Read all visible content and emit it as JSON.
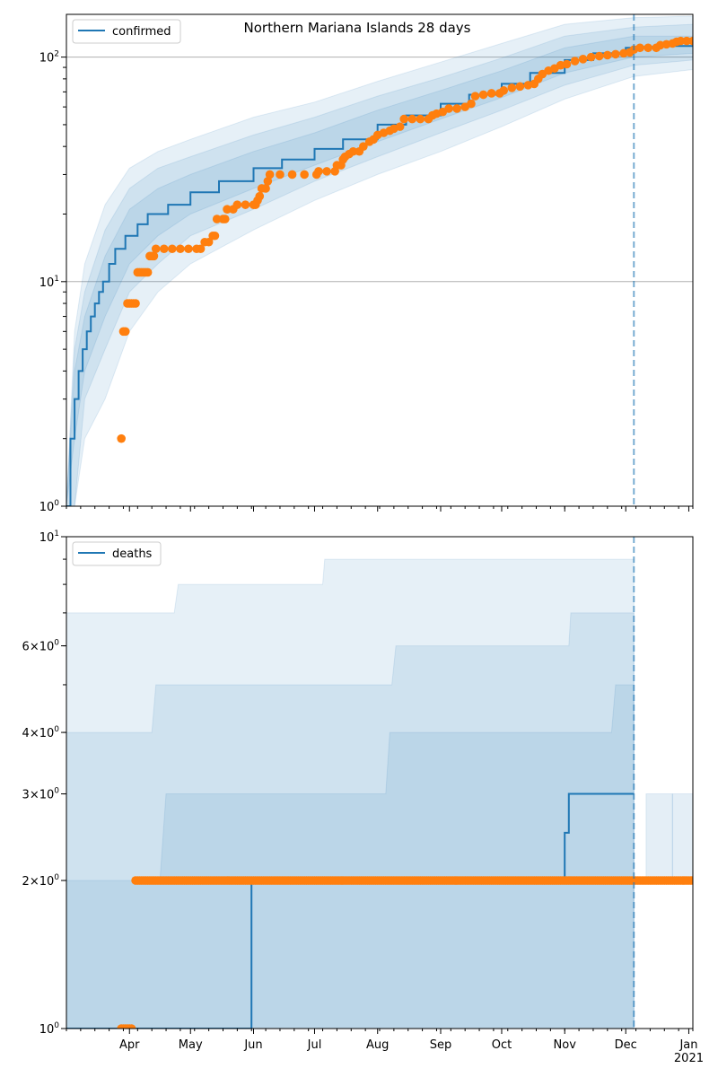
{
  "colors": {
    "model_line": "#1f77b4",
    "band": "#1f77b4",
    "observed": "#ff7f0e",
    "grid": "#b0b0b0",
    "forecast_marker": "#1f77b4"
  },
  "x_axis": {
    "domain": [
      "2020-03-01",
      "2021-01-03"
    ],
    "tick_labels": [
      {
        "date": "2020-04-01",
        "label": "Apr"
      },
      {
        "date": "2020-05-01",
        "label": "May"
      },
      {
        "date": "2020-06-01",
        "label": "Jun"
      },
      {
        "date": "2020-07-01",
        "label": "Jul"
      },
      {
        "date": "2020-08-01",
        "label": "Aug"
      },
      {
        "date": "2020-09-01",
        "label": "Sep"
      },
      {
        "date": "2020-10-01",
        "label": "Oct"
      },
      {
        "date": "2020-11-01",
        "label": "Nov"
      },
      {
        "date": "2020-12-01",
        "label": "Dec"
      },
      {
        "date": "2021-01-01",
        "label": "Jan"
      }
    ],
    "year_label": "2021"
  },
  "chart_data": [
    {
      "type": "line",
      "title": "Northern Mariana Islands 28 days",
      "yscale": "log",
      "ylim": [
        1,
        155
      ],
      "y_ticks": [
        {
          "value": 1,
          "base": "10",
          "exp": "0"
        },
        {
          "value": 10,
          "base": "10",
          "exp": "1"
        },
        {
          "value": 100,
          "base": "10",
          "exp": "2"
        }
      ],
      "grid": "major y lines",
      "legend": {
        "placement": "upper-left",
        "label": "confirmed"
      },
      "forecast_date": "2020-12-05",
      "model_series": [
        [
          "2020-03-01",
          1
        ],
        [
          "2020-03-03",
          2
        ],
        [
          "2020-03-05",
          3
        ],
        [
          "2020-03-07",
          4
        ],
        [
          "2020-03-09",
          5
        ],
        [
          "2020-03-11",
          6
        ],
        [
          "2020-03-13",
          7
        ],
        [
          "2020-03-15",
          8
        ],
        [
          "2020-03-17",
          9
        ],
        [
          "2020-03-19",
          10
        ],
        [
          "2020-03-22",
          12
        ],
        [
          "2020-03-25",
          14
        ],
        [
          "2020-03-30",
          16
        ],
        [
          "2020-04-05",
          18
        ],
        [
          "2020-04-10",
          20
        ],
        [
          "2020-04-20",
          22
        ],
        [
          "2020-05-01",
          25
        ],
        [
          "2020-05-15",
          28
        ],
        [
          "2020-06-01",
          32
        ],
        [
          "2020-06-15",
          35
        ],
        [
          "2020-07-01",
          39
        ],
        [
          "2020-07-15",
          43
        ],
        [
          "2020-08-01",
          50
        ],
        [
          "2020-08-15",
          55
        ],
        [
          "2020-09-01",
          62
        ],
        [
          "2020-09-15",
          68
        ],
        [
          "2020-10-01",
          76
        ],
        [
          "2020-10-15",
          85
        ],
        [
          "2020-11-01",
          97
        ],
        [
          "2020-11-15",
          104
        ],
        [
          "2020-12-01",
          110
        ],
        [
          "2020-12-05",
          111
        ],
        [
          "2020-12-15",
          112
        ],
        [
          "2021-01-03",
          113
        ]
      ],
      "band_inner": [
        [
          "2020-03-01",
          1,
          1
        ],
        [
          "2020-03-05",
          2,
          4
        ],
        [
          "2020-03-10",
          4,
          7
        ],
        [
          "2020-03-20",
          7,
          13
        ],
        [
          "2020-04-01",
          12,
          21
        ],
        [
          "2020-04-15",
          16,
          26
        ],
        [
          "2020-05-01",
          20,
          30
        ],
        [
          "2020-06-01",
          26,
          38
        ],
        [
          "2020-07-01",
          33,
          46
        ],
        [
          "2020-08-01",
          42,
          58
        ],
        [
          "2020-09-01",
          53,
          71
        ],
        [
          "2020-10-01",
          66,
          87
        ],
        [
          "2020-11-01",
          85,
          110
        ],
        [
          "2020-12-05",
          100,
          124
        ],
        [
          "2021-01-03",
          104,
          124
        ]
      ],
      "band_mid": [
        [
          "2020-03-01",
          1,
          1
        ],
        [
          "2020-03-05",
          1,
          5
        ],
        [
          "2020-03-10",
          3,
          9
        ],
        [
          "2020-03-20",
          5,
          17
        ],
        [
          "2020-04-01",
          9,
          26
        ],
        [
          "2020-04-15",
          12,
          32
        ],
        [
          "2020-05-01",
          16,
          36
        ],
        [
          "2020-06-01",
          21,
          45
        ],
        [
          "2020-07-01",
          28,
          54
        ],
        [
          "2020-08-01",
          36,
          67
        ],
        [
          "2020-09-01",
          46,
          81
        ],
        [
          "2020-10-01",
          58,
          99
        ],
        [
          "2020-11-01",
          75,
          124
        ],
        [
          "2020-12-05",
          92,
          136
        ],
        [
          "2021-01-03",
          97,
          140
        ]
      ],
      "band_outer": [
        [
          "2020-03-01",
          1,
          1
        ],
        [
          "2020-03-05",
          1,
          6
        ],
        [
          "2020-03-10",
          2,
          12
        ],
        [
          "2020-03-20",
          3,
          22
        ],
        [
          "2020-04-01",
          6,
          32
        ],
        [
          "2020-04-15",
          9,
          38
        ],
        [
          "2020-05-01",
          12,
          43
        ],
        [
          "2020-06-01",
          17,
          54
        ],
        [
          "2020-07-01",
          23,
          63
        ],
        [
          "2020-08-01",
          30,
          78
        ],
        [
          "2020-09-01",
          38,
          95
        ],
        [
          "2020-10-01",
          49,
          115
        ],
        [
          "2020-11-01",
          65,
          140
        ],
        [
          "2020-12-05",
          82,
          150
        ],
        [
          "2021-01-03",
          88,
          152
        ]
      ],
      "observed": [
        [
          "2020-03-28",
          2
        ],
        [
          "2020-03-29",
          6
        ],
        [
          "2020-03-30",
          6
        ],
        [
          "2020-03-31",
          8
        ],
        [
          "2020-04-01",
          8
        ],
        [
          "2020-04-02",
          8
        ],
        [
          "2020-04-03",
          8
        ],
        [
          "2020-04-04",
          8
        ],
        [
          "2020-04-05",
          11
        ],
        [
          "2020-04-06",
          11
        ],
        [
          "2020-04-07",
          11
        ],
        [
          "2020-04-08",
          11
        ],
        [
          "2020-04-09",
          11
        ],
        [
          "2020-04-10",
          11
        ],
        [
          "2020-04-11",
          13
        ],
        [
          "2020-04-12",
          13
        ],
        [
          "2020-04-13",
          13
        ],
        [
          "2020-04-14",
          14
        ],
        [
          "2020-04-18",
          14
        ],
        [
          "2020-04-22",
          14
        ],
        [
          "2020-04-26",
          14
        ],
        [
          "2020-04-30",
          14
        ],
        [
          "2020-05-04",
          14
        ],
        [
          "2020-05-06",
          14
        ],
        [
          "2020-05-08",
          15
        ],
        [
          "2020-05-10",
          15
        ],
        [
          "2020-05-12",
          16
        ],
        [
          "2020-05-13",
          16
        ],
        [
          "2020-05-14",
          19
        ],
        [
          "2020-05-17",
          19
        ],
        [
          "2020-05-18",
          19
        ],
        [
          "2020-05-19",
          21
        ],
        [
          "2020-05-22",
          21
        ],
        [
          "2020-05-24",
          22
        ],
        [
          "2020-05-28",
          22
        ],
        [
          "2020-06-01",
          22
        ],
        [
          "2020-06-02",
          22
        ],
        [
          "2020-06-03",
          23
        ],
        [
          "2020-06-04",
          24
        ],
        [
          "2020-06-05",
          26
        ],
        [
          "2020-06-07",
          26
        ],
        [
          "2020-06-08",
          28
        ],
        [
          "2020-06-09",
          30
        ],
        [
          "2020-06-14",
          30
        ],
        [
          "2020-06-20",
          30
        ],
        [
          "2020-06-26",
          30
        ],
        [
          "2020-07-02",
          30
        ],
        [
          "2020-07-03",
          31
        ],
        [
          "2020-07-07",
          31
        ],
        [
          "2020-07-11",
          31
        ],
        [
          "2020-07-12",
          33
        ],
        [
          "2020-07-14",
          33
        ],
        [
          "2020-07-15",
          35
        ],
        [
          "2020-07-16",
          36
        ],
        [
          "2020-07-18",
          37
        ],
        [
          "2020-07-20",
          38
        ],
        [
          "2020-07-23",
          38
        ],
        [
          "2020-07-25",
          40
        ],
        [
          "2020-07-28",
          42
        ],
        [
          "2020-07-30",
          43
        ],
        [
          "2020-08-01",
          45
        ],
        [
          "2020-08-04",
          46
        ],
        [
          "2020-08-07",
          47
        ],
        [
          "2020-08-09",
          48
        ],
        [
          "2020-08-12",
          49
        ],
        [
          "2020-08-14",
          53
        ],
        [
          "2020-08-18",
          53
        ],
        [
          "2020-08-22",
          53
        ],
        [
          "2020-08-26",
          53
        ],
        [
          "2020-08-28",
          55
        ],
        [
          "2020-08-30",
          56
        ],
        [
          "2020-09-02",
          57
        ],
        [
          "2020-09-05",
          59
        ],
        [
          "2020-09-09",
          59
        ],
        [
          "2020-09-13",
          60
        ],
        [
          "2020-09-16",
          62
        ],
        [
          "2020-09-18",
          67
        ],
        [
          "2020-09-22",
          68
        ],
        [
          "2020-09-26",
          69
        ],
        [
          "2020-09-30",
          69
        ],
        [
          "2020-10-02",
          71
        ],
        [
          "2020-10-06",
          73
        ],
        [
          "2020-10-10",
          74
        ],
        [
          "2020-10-14",
          75
        ],
        [
          "2020-10-17",
          76
        ],
        [
          "2020-10-19",
          80
        ],
        [
          "2020-10-21",
          84
        ],
        [
          "2020-10-24",
          87
        ],
        [
          "2020-10-27",
          89
        ],
        [
          "2020-10-30",
          92
        ],
        [
          "2020-11-02",
          93
        ],
        [
          "2020-11-06",
          96
        ],
        [
          "2020-11-10",
          98
        ],
        [
          "2020-11-14",
          100
        ],
        [
          "2020-11-18",
          101
        ],
        [
          "2020-11-22",
          102
        ],
        [
          "2020-11-26",
          103
        ],
        [
          "2020-11-30",
          104
        ],
        [
          "2020-12-03",
          105
        ],
        [
          "2020-12-05",
          108
        ],
        [
          "2020-12-08",
          110
        ],
        [
          "2020-12-12",
          110
        ],
        [
          "2020-12-16",
          110
        ],
        [
          "2020-12-18",
          113
        ],
        [
          "2020-12-21",
          114
        ],
        [
          "2020-12-24",
          115
        ],
        [
          "2020-12-26",
          117
        ],
        [
          "2020-12-28",
          118
        ],
        [
          "2020-12-31",
          118
        ],
        [
          "2021-01-03",
          118
        ]
      ]
    },
    {
      "type": "line",
      "title": "",
      "yscale": "log",
      "ylim": [
        1,
        10
      ],
      "y_ticks": [
        {
          "value": 1,
          "base": "10",
          "exp": "0",
          "mantissa": ""
        },
        {
          "value": 2,
          "mantissa": "2",
          "base": "10",
          "exp": "0"
        },
        {
          "value": 3,
          "mantissa": "3",
          "base": "10",
          "exp": "0"
        },
        {
          "value": 4,
          "mantissa": "4",
          "base": "10",
          "exp": "0"
        },
        {
          "value": 6,
          "mantissa": "6",
          "base": "10",
          "exp": "0"
        },
        {
          "value": 10,
          "base": "10",
          "exp": "1",
          "mantissa": ""
        }
      ],
      "grid": "none",
      "legend": {
        "placement": "upper-left",
        "label": "deaths"
      },
      "forecast_date": "2020-12-05",
      "model_series": [
        [
          "2020-03-01",
          1
        ],
        [
          "2020-05-29",
          1
        ],
        [
          "2020-05-31",
          2
        ],
        [
          "2020-10-31",
          2
        ],
        [
          "2020-11-01",
          2.5
        ],
        [
          "2020-11-02",
          2.5
        ],
        [
          "2020-11-03",
          3
        ],
        [
          "2020-12-05",
          3
        ]
      ],
      "band_inner": [
        [
          "2020-03-01",
          1,
          2
        ],
        [
          "2020-04-16",
          1,
          2
        ],
        [
          "2020-04-19",
          1,
          3
        ],
        [
          "2020-08-05",
          1,
          3
        ],
        [
          "2020-08-07",
          1,
          4
        ],
        [
          "2020-11-24",
          1,
          4
        ],
        [
          "2020-11-26",
          1,
          5
        ],
        [
          "2020-12-05",
          1,
          5
        ]
      ],
      "band_mid": [
        [
          "2020-03-01",
          1,
          4
        ],
        [
          "2020-04-12",
          1,
          4
        ],
        [
          "2020-04-14",
          1,
          5
        ],
        [
          "2020-08-08",
          1,
          5
        ],
        [
          "2020-08-10",
          1,
          6
        ],
        [
          "2020-11-03",
          1,
          6
        ],
        [
          "2020-11-04",
          1,
          7
        ],
        [
          "2020-12-05",
          1,
          7
        ]
      ],
      "band_outer": [
        [
          "2020-03-01",
          1,
          7
        ],
        [
          "2020-04-23",
          1,
          7
        ],
        [
          "2020-04-25",
          1,
          8
        ],
        [
          "2020-07-05",
          1,
          8
        ],
        [
          "2020-07-06",
          1,
          9
        ],
        [
          "2020-12-05",
          1,
          9
        ]
      ],
      "post_bands": [
        [
          [
            "2020-12-11",
            2,
            3
          ],
          [
            "2020-12-24",
            2,
            3
          ]
        ],
        [
          [
            "2020-12-24",
            2,
            3
          ],
          [
            "2021-01-03",
            2,
            3
          ]
        ]
      ],
      "observed_runs": [
        {
          "from": "2020-03-28",
          "to": "2020-04-02",
          "value": 1
        },
        {
          "from": "2020-04-04",
          "to": "2021-01-03",
          "value": 2
        }
      ]
    }
  ]
}
